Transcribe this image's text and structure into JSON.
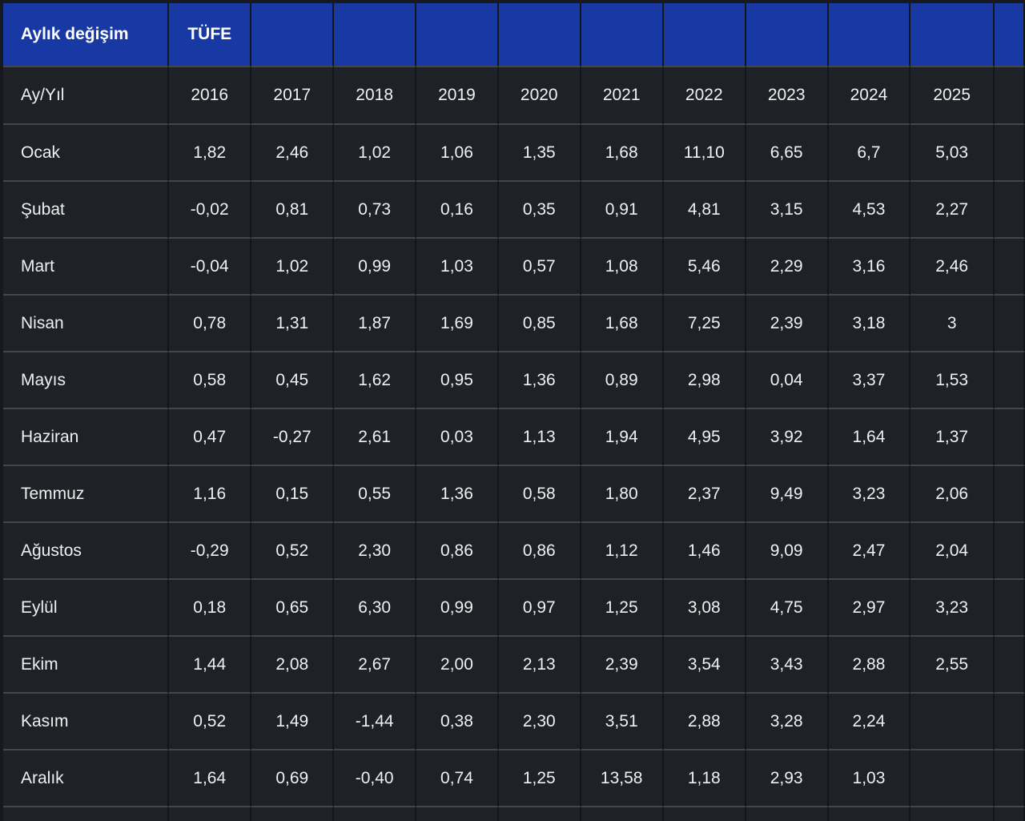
{
  "table": {
    "title": "Aylık değişim",
    "subtitle": "TÜFE",
    "corner_label": "Ay/Yıl",
    "years": [
      "2016",
      "2017",
      "2018",
      "2019",
      "2020",
      "2021",
      "2022",
      "2023",
      "2024",
      "2025"
    ],
    "rows": [
      {
        "month": "Ocak",
        "values": [
          "1,82",
          "2,46",
          "1,02",
          "1,06",
          "1,35",
          "1,68",
          "11,10",
          "6,65",
          "6,7",
          "5,03"
        ]
      },
      {
        "month": "Şubat",
        "values": [
          "-0,02",
          "0,81",
          "0,73",
          "0,16",
          "0,35",
          "0,91",
          "4,81",
          "3,15",
          "4,53",
          "2,27"
        ]
      },
      {
        "month": "Mart",
        "values": [
          "-0,04",
          "1,02",
          "0,99",
          "1,03",
          "0,57",
          "1,08",
          "5,46",
          "2,29",
          "3,16",
          "2,46"
        ]
      },
      {
        "month": "Nisan",
        "values": [
          "0,78",
          "1,31",
          "1,87",
          "1,69",
          "0,85",
          "1,68",
          "7,25",
          "2,39",
          "3,18",
          "3"
        ]
      },
      {
        "month": "Mayıs",
        "values": [
          "0,58",
          "0,45",
          "1,62",
          "0,95",
          "1,36",
          "0,89",
          "2,98",
          "0,04",
          "3,37",
          "1,53"
        ]
      },
      {
        "month": "Haziran",
        "values": [
          "0,47",
          "-0,27",
          "2,61",
          "0,03",
          "1,13",
          "1,94",
          "4,95",
          "3,92",
          "1,64",
          "1,37"
        ]
      },
      {
        "month": "Temmuz",
        "values": [
          "1,16",
          "0,15",
          "0,55",
          "1,36",
          "0,58",
          "1,80",
          "2,37",
          "9,49",
          "3,23",
          "2,06"
        ]
      },
      {
        "month": "Ağustos",
        "values": [
          "-0,29",
          "0,52",
          "2,30",
          "0,86",
          "0,86",
          "1,12",
          "1,46",
          "9,09",
          "2,47",
          "2,04"
        ]
      },
      {
        "month": "Eylül",
        "values": [
          "0,18",
          "0,65",
          "6,30",
          "0,99",
          "0,97",
          "1,25",
          "3,08",
          "4,75",
          "2,97",
          "3,23"
        ]
      },
      {
        "month": "Ekim",
        "values": [
          "1,44",
          "2,08",
          "2,67",
          "2,00",
          "2,13",
          "2,39",
          "3,54",
          "3,43",
          "2,88",
          "2,55"
        ]
      },
      {
        "month": "Kasım",
        "values": [
          "0,52",
          "1,49",
          "-1,44",
          "0,38",
          "2,30",
          "3,51",
          "2,88",
          "3,28",
          "2,24",
          ""
        ]
      },
      {
        "month": "Aralık",
        "values": [
          "1,64",
          "0,69",
          "-0,40",
          "0,74",
          "1,25",
          "13,58",
          "1,18",
          "2,93",
          "1,03",
          ""
        ]
      }
    ]
  },
  "colors": {
    "header_bg": "#1839a4",
    "cell_bg": "#1e2226",
    "page_bg": "#17191c",
    "grid_light": "#43474b",
    "grid_dark": "#121519",
    "text": "#eef0f2"
  },
  "chart_data": {
    "type": "table",
    "title": "Aylık değişim - TÜFE",
    "xlabel": "Ay/Yıl",
    "categories": [
      "Ocak",
      "Şubat",
      "Mart",
      "Nisan",
      "Mayıs",
      "Haziran",
      "Temmuz",
      "Ağustos",
      "Eylül",
      "Ekim",
      "Kasım",
      "Aralık"
    ],
    "series": [
      {
        "name": "2016",
        "values": [
          1.82,
          -0.02,
          -0.04,
          0.78,
          0.58,
          0.47,
          1.16,
          -0.29,
          0.18,
          1.44,
          0.52,
          1.64
        ]
      },
      {
        "name": "2017",
        "values": [
          2.46,
          0.81,
          1.02,
          1.31,
          0.45,
          -0.27,
          0.15,
          0.52,
          0.65,
          2.08,
          1.49,
          0.69
        ]
      },
      {
        "name": "2018",
        "values": [
          1.02,
          0.73,
          0.99,
          1.87,
          1.62,
          2.61,
          0.55,
          2.3,
          6.3,
          2.67,
          -1.44,
          -0.4
        ]
      },
      {
        "name": "2019",
        "values": [
          1.06,
          0.16,
          1.03,
          1.69,
          0.95,
          0.03,
          1.36,
          0.86,
          0.99,
          2.0,
          0.38,
          0.74
        ]
      },
      {
        "name": "2020",
        "values": [
          1.35,
          0.35,
          0.57,
          0.85,
          1.36,
          1.13,
          0.58,
          0.86,
          0.97,
          2.13,
          2.3,
          1.25
        ]
      },
      {
        "name": "2021",
        "values": [
          1.68,
          0.91,
          1.08,
          1.68,
          0.89,
          1.94,
          1.8,
          1.12,
          1.25,
          2.39,
          3.51,
          13.58
        ]
      },
      {
        "name": "2022",
        "values": [
          11.1,
          4.81,
          5.46,
          7.25,
          2.98,
          4.95,
          2.37,
          1.46,
          3.08,
          3.54,
          2.88,
          1.18
        ]
      },
      {
        "name": "2023",
        "values": [
          6.65,
          3.15,
          2.29,
          2.39,
          0.04,
          3.92,
          9.49,
          9.09,
          4.75,
          3.43,
          3.28,
          2.93
        ]
      },
      {
        "name": "2024",
        "values": [
          6.7,
          4.53,
          3.16,
          3.18,
          3.37,
          1.64,
          3.23,
          2.47,
          2.97,
          2.88,
          2.24,
          1.03
        ]
      },
      {
        "name": "2025",
        "values": [
          5.03,
          2.27,
          2.46,
          3,
          1.53,
          1.37,
          2.06,
          2.04,
          3.23,
          2.55,
          null,
          null
        ]
      }
    ]
  }
}
